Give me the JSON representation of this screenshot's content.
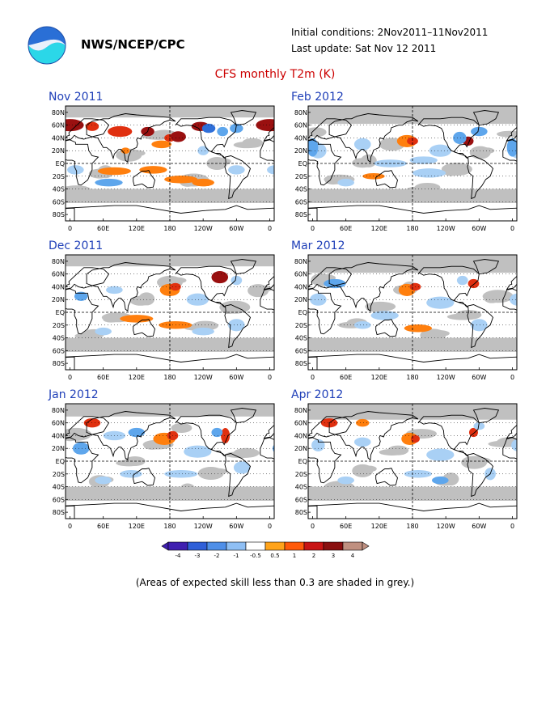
{
  "header": {
    "agency": "NWS/NCEP/CPC",
    "initial_conditions": "Initial conditions: 2Nov2011–11Nov2011",
    "last_update": "Last update: Sat Nov 12 2011",
    "logo_icon": "noaa-logo-icon"
  },
  "title": "CFS monthly T2m (K)",
  "axes": {
    "lat_labels": [
      "80N",
      "60N",
      "40N",
      "20N",
      "EQ",
      "20S",
      "40S",
      "60S",
      "80S"
    ],
    "lon_labels": [
      "0",
      "60E",
      "120E",
      "180",
      "120W",
      "60W",
      "0"
    ]
  },
  "panels": [
    {
      "label": "Nov 2011",
      "id": "nov-2011"
    },
    {
      "label": "Feb 2012",
      "id": "feb-2012"
    },
    {
      "label": "Dec 2011",
      "id": "dec-2011"
    },
    {
      "label": "Mar 2012",
      "id": "mar-2012"
    },
    {
      "label": "Jan 2012",
      "id": "jan-2012"
    },
    {
      "label": "Apr 2012",
      "id": "apr-2012"
    }
  ],
  "colorbar": {
    "tick_labels": [
      "-4",
      "-3",
      "-2",
      "-1",
      "-0.5",
      "0.5",
      "1",
      "2",
      "3",
      "4"
    ],
    "colors": [
      "#3f1fb0",
      "#2f5fd8",
      "#4f8fe8",
      "#8fbff4",
      "#ffffff",
      "#ffa31a",
      "#ff5a0a",
      "#c81414",
      "#8a0f0f",
      "#c09080"
    ]
  },
  "caption": "(Areas of expected skill less than 0.3 are shaded in grey.)",
  "palette": {
    "grey": "#c0c0c0",
    "blue_light": "#a9d0f5",
    "blue_mid": "#5ea6ec",
    "blue_dark": "#2f6fd8",
    "orange_light": "#ffb347",
    "orange": "#ff7f0e",
    "red": "#e03010",
    "dark_red": "#9a1010",
    "panel_title": "#1f3fb8",
    "title_red": "#cc0000"
  }
}
